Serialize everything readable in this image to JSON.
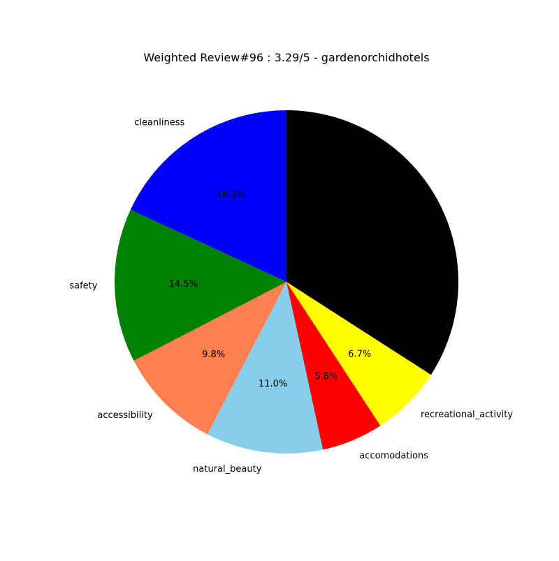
{
  "chart_data": {
    "type": "pie",
    "title": "Weighted Review#96 : 3.29/5 - gardenorchidhotels",
    "start_angle_deg": 90,
    "direction": "counterclockwise",
    "slices": [
      {
        "label": "cleanliness",
        "value": 18.1,
        "pct_label": "18.1%",
        "color": "#0000ff"
      },
      {
        "label": "safety",
        "value": 14.5,
        "pct_label": "14.5%",
        "color": "#008000"
      },
      {
        "label": "accessibility",
        "value": 9.8,
        "pct_label": "9.8%",
        "color": "#ff7f50"
      },
      {
        "label": "natural_beauty",
        "value": 11.0,
        "pct_label": "11.0%",
        "color": "#87ceeb"
      },
      {
        "label": "accomodations",
        "value": 5.8,
        "pct_label": "5.8%",
        "color": "#ff0000"
      },
      {
        "label": "recreational_activity",
        "value": 6.7,
        "pct_label": "6.7%",
        "color": "#ffff00"
      },
      {
        "label": "",
        "value": 34.1,
        "pct_label": "",
        "color": "#000000"
      }
    ]
  }
}
